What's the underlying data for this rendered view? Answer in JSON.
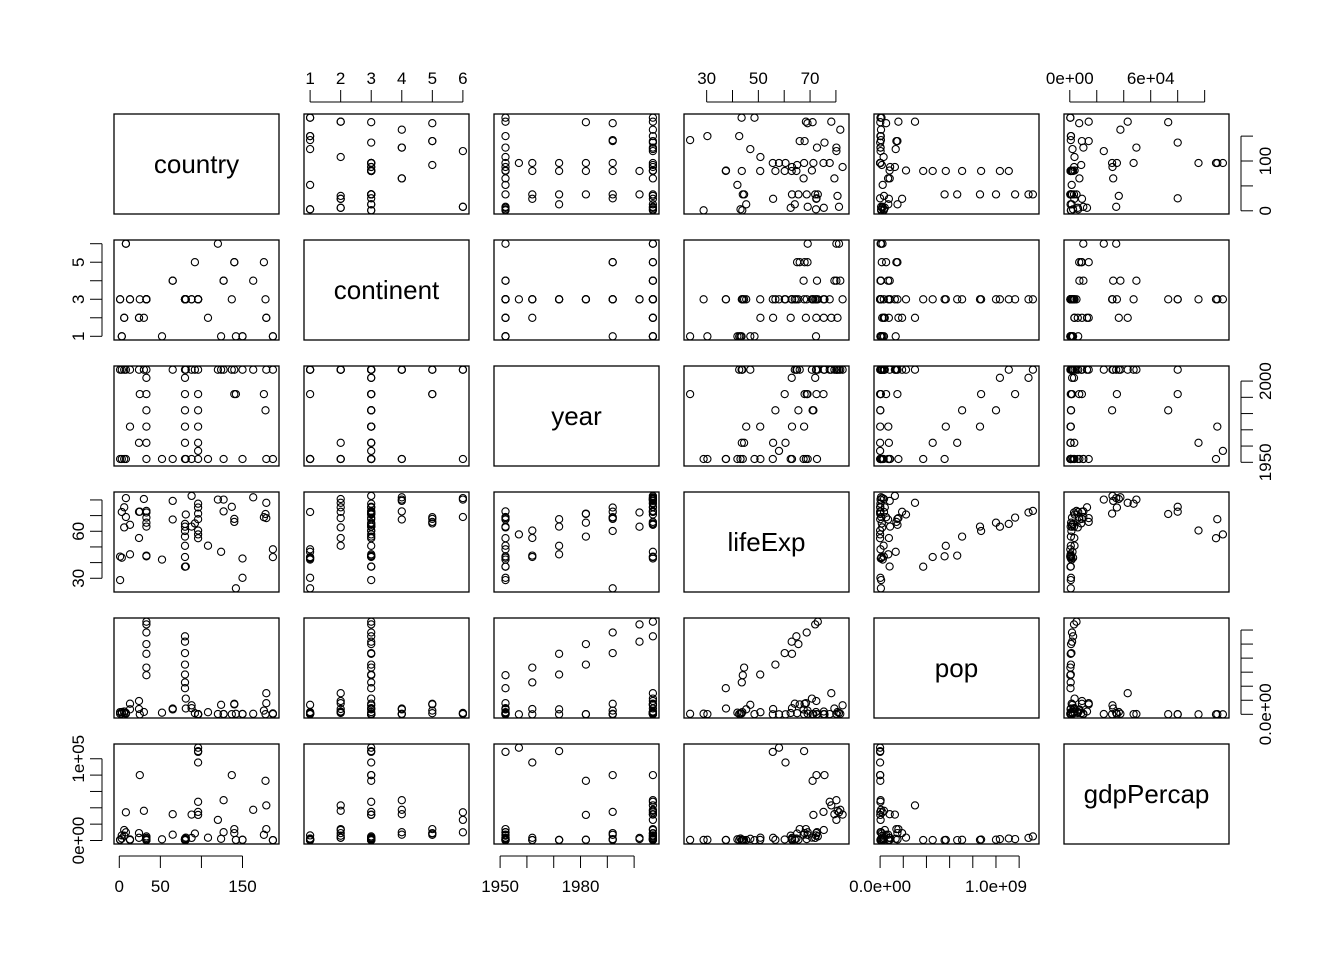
{
  "chart_data": {
    "type": "scatter-matrix",
    "title": "",
    "variables": [
      {
        "name": "country",
        "range": [
          1,
          187
        ],
        "ticks": [
          0,
          50,
          100,
          150
        ],
        "axis_h_labels": [
          "0",
          "50",
          "",
          "150"
        ],
        "axis_v_labels": [
          "0",
          "",
          "100",
          ""
        ]
      },
      {
        "name": "continent",
        "range": [
          1,
          6
        ],
        "ticks": [
          1,
          2,
          3,
          4,
          5,
          6
        ],
        "axis_h_labels": [
          "1",
          "2",
          "3",
          "4",
          "5",
          "6"
        ],
        "axis_v_labels": [
          "1",
          "",
          "3",
          "",
          "5",
          ""
        ]
      },
      {
        "name": "year",
        "range": [
          1950,
          2007
        ],
        "ticks": [
          1950,
          1960,
          1970,
          1980,
          1990,
          2000
        ],
        "axis_h_labels": [
          "1950",
          "",
          "",
          "1980",
          "",
          ""
        ],
        "axis_v_labels": [
          "1950",
          "",
          "",
          "",
          "",
          "2000"
        ]
      },
      {
        "name": "lifeExp",
        "range": [
          23.6,
          82.7
        ],
        "ticks": [
          30,
          40,
          50,
          60,
          70,
          80
        ],
        "axis_h_labels": [
          "30",
          "",
          "50",
          "",
          "70",
          ""
        ],
        "axis_v_labels": [
          "30",
          "",
          "",
          "60",
          "",
          ""
        ]
      },
      {
        "name": "pop",
        "range": [
          59412,
          1318683096
        ],
        "ticks": [
          0,
          200000000,
          400000000,
          600000000,
          800000000,
          1000000000,
          1200000000
        ],
        "axis_h_labels": [
          "0.0e+00",
          "",
          "",
          "",
          "",
          "1.0e+09",
          ""
        ],
        "axis_v_labels": [
          "0.0e+00",
          "",
          "",
          "",
          "",
          "",
          ""
        ]
      },
      {
        "name": "gdpPercap",
        "range": [
          241,
          113523
        ],
        "ticks": [
          0,
          20000,
          40000,
          60000,
          80000,
          100000
        ],
        "axis_h_labels": [
          "0e+00",
          "",
          "",
          "6e+04",
          "",
          ""
        ],
        "axis_v_labels": [
          "0e+00",
          "",
          "",
          "",
          "",
          "1e+05"
        ]
      }
    ],
    "columns": [
      "country",
      "continent",
      "year",
      "lifeExp",
      "pop",
      "gdpPercap"
    ],
    "rows_sample": [
      [
        1,
        3,
        1952,
        28.8,
        8425333,
        779
      ],
      [
        1,
        3,
        2007,
        43.8,
        31889923,
        975
      ],
      [
        3,
        1,
        1952,
        43.1,
        9279525,
        2449
      ],
      [
        3,
        1,
        2007,
        72.3,
        33333216,
        6223
      ],
      [
        6,
        2,
        1952,
        62.5,
        17876956,
        5911
      ],
      [
        6,
        2,
        2007,
        75.3,
        40301927,
        12779
      ],
      [
        8,
        6,
        1952,
        69.1,
        8691212,
        10040
      ],
      [
        8,
        6,
        2007,
        81.2,
        20434176,
        34435
      ],
      [
        13,
        3,
        1972,
        45.3,
        70759295,
        630
      ],
      [
        13,
        3,
        2007,
        64.1,
        150448339,
        1391
      ],
      [
        24,
        2,
        1962,
        55.7,
        76039390,
        3337
      ],
      [
        24,
        2,
        2007,
        72.4,
        190010647,
        9066
      ],
      [
        25,
        3,
        1992,
        72.5,
        280000,
        80000
      ],
      [
        30,
        2,
        2007,
        80.6,
        33390141,
        36319
      ],
      [
        33,
        3,
        1952,
        44.0,
        556263527,
        400
      ],
      [
        33,
        3,
        1962,
        44.5,
        665770000,
        487
      ],
      [
        33,
        3,
        1972,
        63.0,
        862030000,
        676
      ],
      [
        33,
        3,
        1982,
        65.5,
        1000281000,
        962
      ],
      [
        33,
        3,
        1992,
        68.7,
        1164970000,
        1656
      ],
      [
        33,
        3,
        2002,
        72.0,
        1280400000,
        3119
      ],
      [
        33,
        3,
        2007,
        73.0,
        1318683096,
        4959
      ],
      [
        52,
        1,
        1952,
        41.9,
        22223309,
        1419
      ],
      [
        65,
        4,
        1952,
        67.5,
        69145952,
        7144
      ],
      [
        65,
        4,
        2007,
        79.4,
        82400996,
        32170
      ],
      [
        80,
        3,
        1952,
        37.4,
        372000000,
        547
      ],
      [
        80,
        3,
        1962,
        43.6,
        454000000,
        658
      ],
      [
        80,
        3,
        1972,
        50.7,
        567000000,
        724
      ],
      [
        80,
        3,
        1982,
        56.6,
        708000000,
        855
      ],
      [
        80,
        3,
        1992,
        60.2,
        872000000,
        1164
      ],
      [
        80,
        3,
        2002,
        62.9,
        1034172547,
        1747
      ],
      [
        80,
        3,
        2007,
        64.7,
        1110396331,
        2452
      ],
      [
        81,
        3,
        1952,
        37.5,
        82052000,
        750
      ],
      [
        81,
        3,
        2007,
        70.7,
        223547000,
        3541
      ],
      [
        88,
        3,
        1952,
        63.0,
        86459025,
        3217
      ],
      [
        88,
        3,
        2007,
        82.6,
        127467972,
        31656
      ],
      [
        92,
        5,
        2007,
        65.0,
        15000000,
        8500
      ],
      [
        96,
        3,
        1952,
        55.6,
        160000,
        108382
      ],
      [
        96,
        3,
        1957,
        58.0,
        212846,
        113523
      ],
      [
        96,
        3,
        1962,
        60.5,
        358266,
        95458
      ],
      [
        96,
        3,
        1972,
        67.7,
        841934,
        109348
      ],
      [
        96,
        3,
        1982,
        71.3,
        1497494,
        31354
      ],
      [
        96,
        3,
        1992,
        75.2,
        1418095,
        34932
      ],
      [
        96,
        3,
        2007,
        77.6,
        2505559,
        47307
      ],
      [
        108,
        2,
        1952,
        50.8,
        30144317,
        3478
      ],
      [
        120,
        6,
        2007,
        80.2,
        4115771,
        25185
      ],
      [
        124,
        1,
        2007,
        46.9,
        135031164,
        2014
      ],
      [
        127,
        4,
        1952,
        72.7,
        3327728,
        10095
      ],
      [
        127,
        4,
        2007,
        80.2,
        4627926,
        49357
      ],
      [
        137,
        3,
        2007,
        75.6,
        907229,
        80000
      ],
      [
        140,
        5,
        1992,
        67.9,
        149000000,
        9000
      ],
      [
        140,
        5,
        2007,
        66.0,
        141000000,
        14000
      ],
      [
        142,
        1,
        1992,
        23.6,
        7290203,
        737
      ],
      [
        150,
        1,
        1952,
        30.3,
        2143249,
        880
      ],
      [
        150,
        1,
        2007,
        42.6,
        6144562,
        863
      ],
      [
        163,
        4,
        2007,
        81.7,
        7554661,
        37506
      ],
      [
        176,
        5,
        1992,
        69.0,
        52000000,
        7000
      ],
      [
        178,
        3,
        1982,
        71.0,
        1300000,
        73000
      ],
      [
        179,
        2,
        1952,
        68.4,
        157553000,
        13990
      ],
      [
        179,
        2,
        2007,
        78.2,
        301139947,
        42952
      ],
      [
        187,
        1,
        1952,
        48.5,
        3080907,
        407
      ],
      [
        187,
        1,
        2007,
        43.5,
        12311143,
        470
      ]
    ]
  }
}
